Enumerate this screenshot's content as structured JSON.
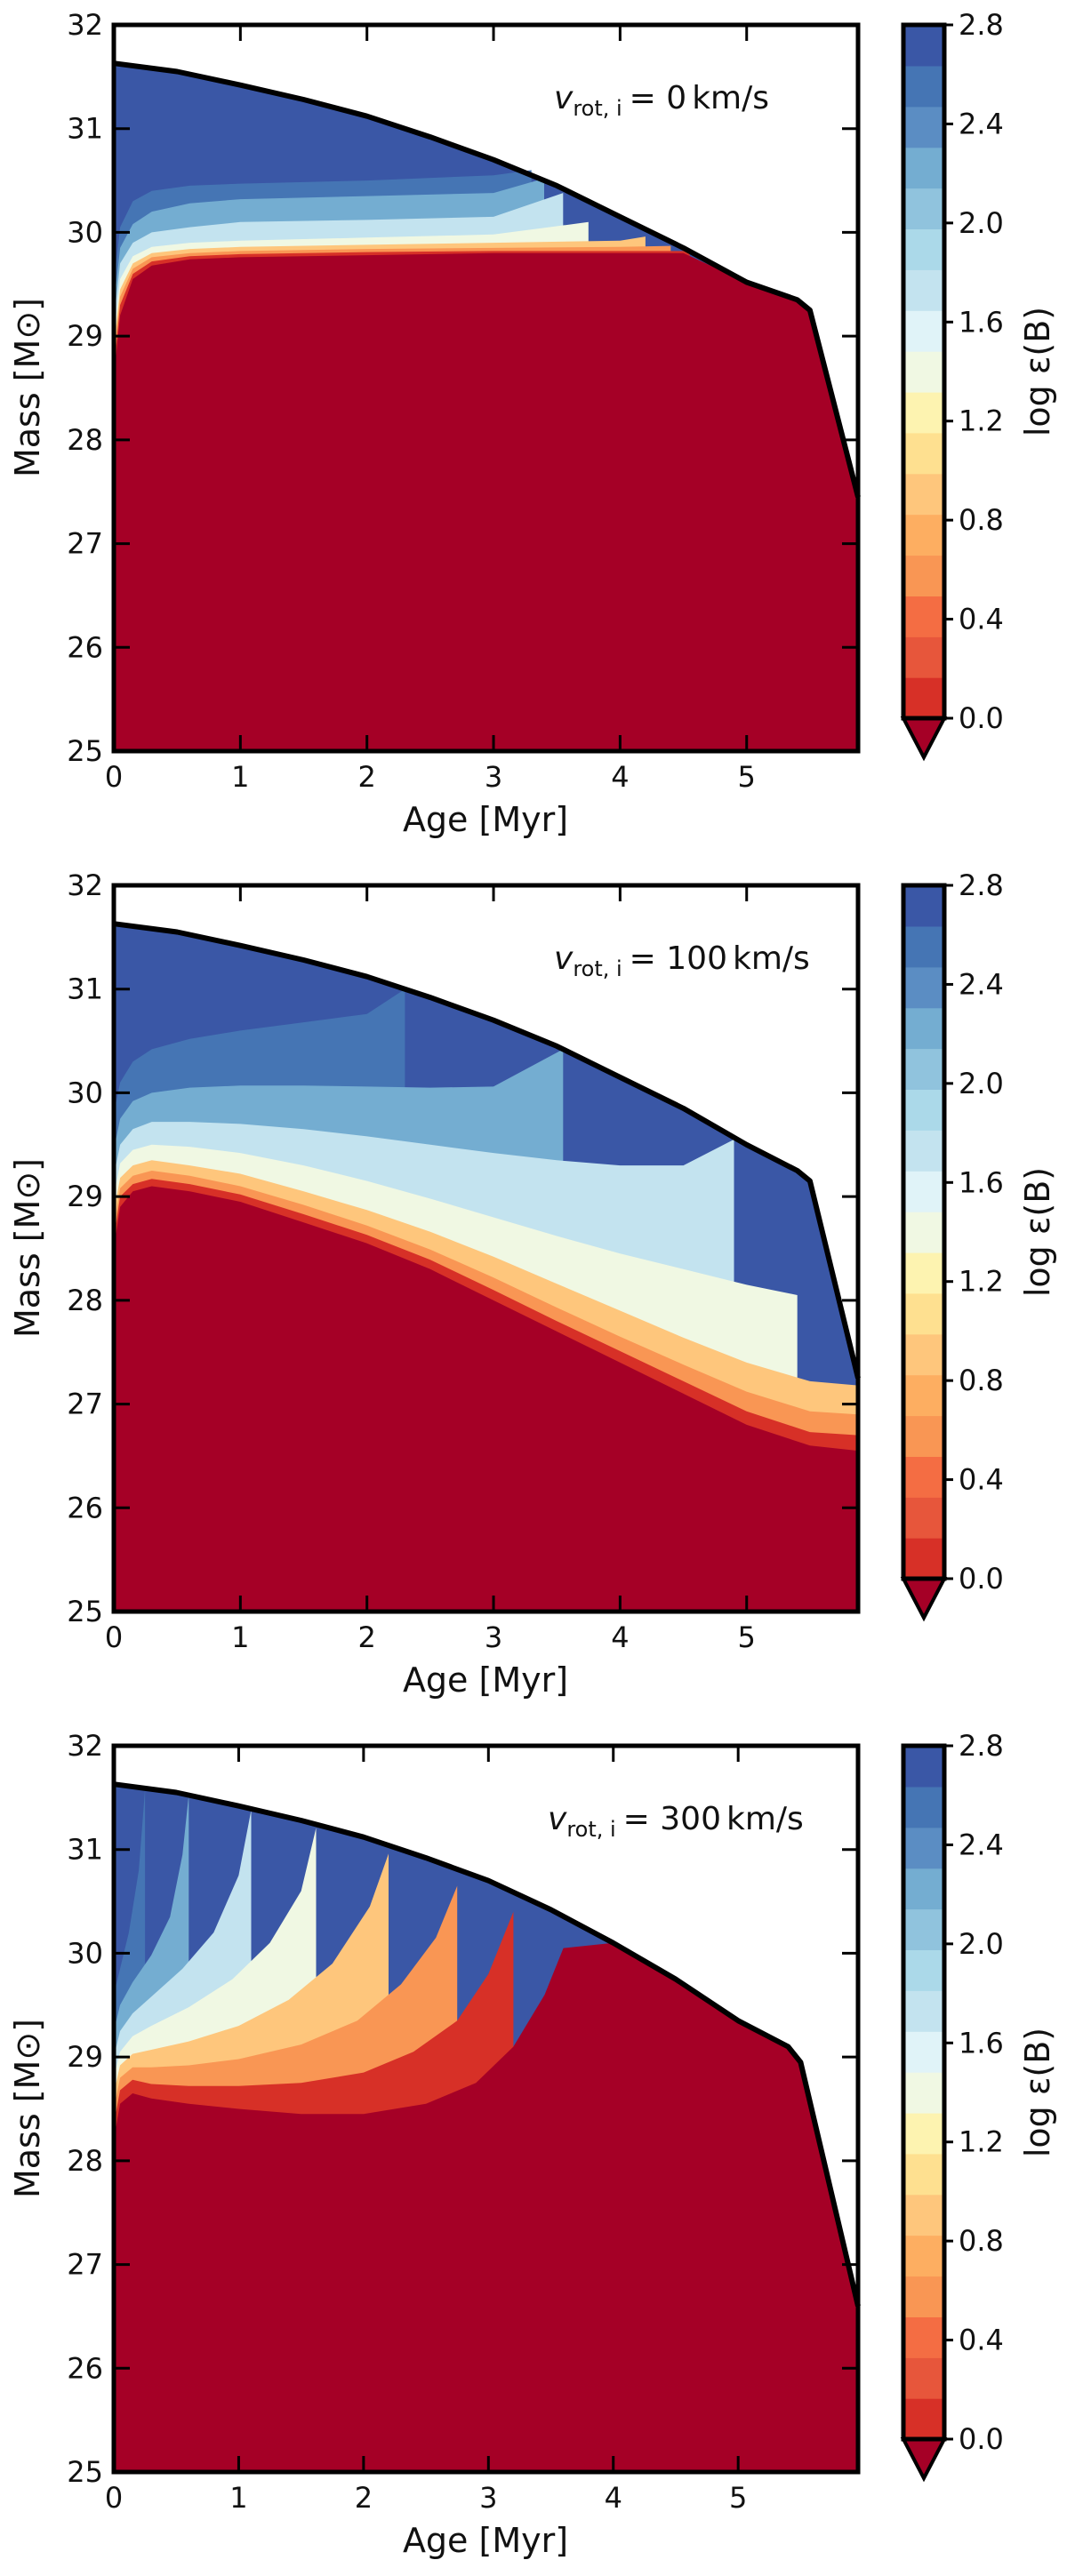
{
  "colors": {
    "levels": [
      "#a50026",
      "#d73027",
      "#e7563b",
      "#f46d43",
      "#f99654",
      "#fdae61",
      "#fec67c",
      "#fee090",
      "#fdf3b0",
      "#f0f8e3",
      "#e0f3f8",
      "#c3e3ef",
      "#abd9e9",
      "#90c3dd",
      "#74add1",
      "#5b8dc3",
      "#4575b4",
      "#3a57a6"
    ],
    "boundary": "#000000",
    "background": "#ffffff"
  },
  "chart_data": [
    {
      "type": "contourf",
      "annotation": "v_rot,i = 0 km/s",
      "annotation_parts": {
        "symbol": "v",
        "subscript": "rot, i",
        "equals": "= ",
        "value": "0",
        "unit": "km/s"
      },
      "xlabel": "Age [Myr]",
      "ylabel": "Mass [M⊙]",
      "xlim": [
        0,
        5.88
      ],
      "ylim": [
        25,
        32
      ],
      "xticks": [
        "0",
        "1",
        "2",
        "3",
        "4",
        "5"
      ],
      "yticks": [
        "25",
        "26",
        "27",
        "28",
        "29",
        "30",
        "31",
        "32"
      ],
      "colorbar": {
        "label": "log ε(B)",
        "min": 0.0,
        "max": 2.8,
        "ticks": [
          "0.0",
          "0.4",
          "0.8",
          "1.2",
          "1.6",
          "2.0",
          "2.4",
          "2.8"
        ],
        "extend": "min"
      },
      "boundary": {
        "age": [
          0,
          0.5,
          1,
          1.5,
          2,
          2.5,
          3,
          3.5,
          4,
          4.5,
          5,
          5.4,
          5.5,
          5.88
        ],
        "mass": [
          31.63,
          31.55,
          31.42,
          31.28,
          31.12,
          30.92,
          30.7,
          30.45,
          30.15,
          29.85,
          29.52,
          29.35,
          29.25,
          27.45
        ]
      },
      "core_top": {
        "age": [
          0,
          0.05,
          0.15,
          0.3,
          0.6,
          1,
          2,
          3,
          4,
          4.5
        ],
        "mass": [
          28.6,
          29.2,
          29.55,
          29.68,
          29.74,
          29.76,
          29.78,
          29.8,
          29.8,
          29.8
        ]
      },
      "transition_base_age": 4.55,
      "contours": [
        {
          "level": 0.4,
          "age": [
            0,
            0.05,
            0.15,
            0.3,
            0.6,
            1,
            2,
            3,
            4,
            4.55
          ],
          "mass": [
            28.7,
            29.3,
            29.6,
            29.72,
            29.77,
            29.79,
            29.81,
            29.82,
            29.82,
            29.82
          ]
        },
        {
          "level": 0.8,
          "age": [
            0,
            0.05,
            0.15,
            0.3,
            0.6,
            1,
            2,
            3,
            4,
            4.4
          ],
          "mass": [
            28.8,
            29.38,
            29.65,
            29.76,
            29.8,
            29.82,
            29.84,
            29.85,
            29.86,
            29.87
          ]
        },
        {
          "level": 1.2,
          "age": [
            0,
            0.05,
            0.15,
            0.3,
            0.6,
            1,
            2,
            3,
            4,
            4.2
          ],
          "mass": [
            28.9,
            29.45,
            29.7,
            29.8,
            29.84,
            29.86,
            29.88,
            29.9,
            29.92,
            29.96
          ]
        },
        {
          "level": 1.6,
          "age": [
            0,
            0.05,
            0.15,
            0.3,
            0.6,
            1,
            2,
            3,
            3.75
          ],
          "mass": [
            29.0,
            29.55,
            29.77,
            29.86,
            29.9,
            29.92,
            29.95,
            29.98,
            30.1
          ]
        },
        {
          "level": 2.0,
          "age": [
            0,
            0.05,
            0.15,
            0.3,
            0.6,
            1,
            2,
            3,
            3.55
          ],
          "mass": [
            29.15,
            29.7,
            29.9,
            30.0,
            30.05,
            30.1,
            30.12,
            30.15,
            30.38
          ]
        },
        {
          "level": 2.4,
          "age": [
            0,
            0.05,
            0.15,
            0.3,
            0.6,
            1,
            2,
            3,
            3.4
          ],
          "mass": [
            29.3,
            29.85,
            30.08,
            30.2,
            30.28,
            30.32,
            30.35,
            30.38,
            30.52
          ]
        },
        {
          "level": 2.8,
          "age": [
            0,
            0.05,
            0.15,
            0.3,
            0.6,
            1,
            2,
            3,
            3.3
          ],
          "mass": [
            29.5,
            30.05,
            30.3,
            30.4,
            30.45,
            30.47,
            30.5,
            30.55,
            30.6
          ]
        }
      ]
    },
    {
      "type": "contourf",
      "annotation": "v_rot,i = 100 km/s",
      "annotation_parts": {
        "symbol": "v",
        "subscript": "rot, i",
        "equals": "= ",
        "value": "100",
        "unit": "km/s"
      },
      "xlabel": "Age [Myr]",
      "ylabel": "Mass [M⊙]",
      "xlim": [
        0,
        5.88
      ],
      "ylim": [
        25,
        32
      ],
      "xticks": [
        "0",
        "1",
        "2",
        "3",
        "4",
        "5"
      ],
      "yticks": [
        "25",
        "26",
        "27",
        "28",
        "29",
        "30",
        "31",
        "32"
      ],
      "colorbar": {
        "label": "log ε(B)",
        "min": 0.0,
        "max": 2.8,
        "ticks": [
          "0.0",
          "0.4",
          "0.8",
          "1.2",
          "1.6",
          "2.0",
          "2.4",
          "2.8"
        ],
        "extend": "min"
      },
      "boundary": {
        "age": [
          0,
          0.5,
          1,
          1.5,
          2,
          2.5,
          3,
          3.5,
          4,
          4.5,
          5,
          5.4,
          5.5,
          5.88
        ],
        "mass": [
          31.63,
          31.55,
          31.42,
          31.28,
          31.12,
          30.92,
          30.7,
          30.45,
          30.15,
          29.85,
          29.5,
          29.25,
          29.15,
          27.25
        ]
      },
      "core_top": {
        "age": [
          0,
          0.05,
          0.15,
          0.3,
          0.6,
          1,
          1.5,
          2,
          2.5,
          3,
          3.5,
          4,
          4.5,
          5,
          5.5,
          5.88
        ],
        "mass": [
          28.5,
          28.9,
          29.05,
          29.1,
          29.05,
          28.95,
          28.75,
          28.55,
          28.3,
          28.0,
          27.7,
          27.4,
          27.1,
          26.8,
          26.6,
          26.55
        ]
      },
      "contours": [
        {
          "level": 0.4,
          "age": [
            0,
            0.05,
            0.15,
            0.3,
            0.6,
            1,
            1.5,
            2,
            2.5,
            3,
            3.5,
            4,
            4.5,
            5,
            5.5,
            5.88
          ],
          "mass": [
            28.6,
            29.0,
            29.12,
            29.17,
            29.12,
            29.02,
            28.83,
            28.63,
            28.39,
            28.1,
            27.8,
            27.51,
            27.22,
            26.93,
            26.73,
            26.7
          ]
        },
        {
          "level": 0.8,
          "age": [
            0,
            0.05,
            0.15,
            0.3,
            0.6,
            1,
            1.5,
            2,
            2.5,
            3,
            3.5,
            4,
            4.5,
            5,
            5.5,
            5.88
          ],
          "mass": [
            28.7,
            29.08,
            29.2,
            29.25,
            29.2,
            29.1,
            28.92,
            28.72,
            28.49,
            28.22,
            27.93,
            27.65,
            27.38,
            27.12,
            26.93,
            26.9
          ]
        },
        {
          "level": 1.2,
          "age": [
            0,
            0.05,
            0.15,
            0.3,
            0.6,
            1,
            1.5,
            2,
            2.5,
            3,
            3.5,
            4,
            4.5,
            5,
            5.5,
            5.88
          ],
          "mass": [
            28.85,
            29.18,
            29.3,
            29.35,
            29.3,
            29.22,
            29.05,
            28.87,
            28.66,
            28.42,
            28.16,
            27.9,
            27.64,
            27.4,
            27.22,
            27.18
          ]
        },
        {
          "level": 1.6,
          "age": [
            0,
            0.05,
            0.15,
            0.3,
            0.6,
            1,
            1.5,
            2,
            2.5,
            3,
            3.5,
            4,
            4.5,
            5,
            5.4
          ],
          "mass": [
            29.0,
            29.32,
            29.45,
            29.5,
            29.48,
            29.42,
            29.3,
            29.15,
            28.98,
            28.8,
            28.62,
            28.45,
            28.3,
            28.15,
            28.05
          ]
        },
        {
          "level": 2.0,
          "age": [
            0,
            0.05,
            0.15,
            0.3,
            0.6,
            1,
            1.5,
            2,
            2.5,
            3,
            3.5,
            4,
            4.5,
            4.9
          ],
          "mass": [
            29.2,
            29.5,
            29.65,
            29.72,
            29.72,
            29.7,
            29.65,
            29.58,
            29.5,
            29.42,
            29.35,
            29.3,
            29.3,
            29.55
          ]
        },
        {
          "level": 2.4,
          "age": [
            0,
            0.05,
            0.15,
            0.3,
            0.6,
            1,
            1.5,
            2,
            2.5,
            3,
            3.55
          ],
          "mass": [
            29.45,
            29.75,
            29.92,
            30.0,
            30.05,
            30.07,
            30.07,
            30.06,
            30.05,
            30.06,
            30.42
          ]
        },
        {
          "level": 2.8,
          "age": [
            0,
            0.05,
            0.15,
            0.3,
            0.6,
            1,
            1.5,
            2,
            2.3
          ],
          "mass": [
            29.8,
            30.1,
            30.3,
            30.42,
            30.52,
            30.6,
            30.68,
            30.76,
            31.0
          ]
        }
      ]
    },
    {
      "type": "contourf",
      "annotation": "v_rot,i = 300 km/s",
      "annotation_parts": {
        "symbol": "v",
        "subscript": "rot, i",
        "equals": "= ",
        "value": "300",
        "unit": "km/s"
      },
      "xlabel": "Age [Myr]",
      "ylabel": "Mass [M⊙]",
      "xlim": [
        0,
        5.96
      ],
      "ylim": [
        25,
        32
      ],
      "xticks": [
        "0",
        "1",
        "2",
        "3",
        "4",
        "5"
      ],
      "yticks": [
        "25",
        "26",
        "27",
        "28",
        "29",
        "30",
        "31",
        "32"
      ],
      "colorbar": {
        "label": "log ε(B)",
        "min": 0.0,
        "max": 2.8,
        "ticks": [
          "0.0",
          "0.4",
          "0.8",
          "1.2",
          "1.6",
          "2.0",
          "2.4",
          "2.8"
        ],
        "extend": "min"
      },
      "boundary": {
        "age": [
          0,
          0.5,
          1,
          1.5,
          2,
          2.5,
          3,
          3.5,
          4,
          4.5,
          5,
          5.4,
          5.5,
          5.96
        ],
        "mass": [
          31.63,
          31.55,
          31.42,
          31.28,
          31.12,
          30.92,
          30.7,
          30.42,
          30.1,
          29.75,
          29.35,
          29.1,
          28.95,
          26.6
        ]
      },
      "core_top": {
        "age": [
          0,
          0.05,
          0.15,
          0.3,
          0.6,
          1,
          1.5,
          2,
          2.5,
          2.9,
          3.2,
          3.45,
          3.6
        ],
        "mass": [
          28.2,
          28.55,
          28.65,
          28.6,
          28.55,
          28.5,
          28.45,
          28.45,
          28.55,
          28.75,
          29.1,
          29.6,
          30.05
        ]
      },
      "contours": [
        {
          "level": 0.4,
          "age": [
            0,
            0.05,
            0.15,
            0.3,
            0.6,
            1,
            1.5,
            2,
            2.4,
            2.75,
            3.0,
            3.2
          ],
          "mass": [
            28.35,
            28.68,
            28.78,
            28.74,
            28.72,
            28.72,
            28.75,
            28.85,
            29.05,
            29.35,
            29.8,
            30.4
          ]
        },
        {
          "level": 0.8,
          "age": [
            0,
            0.05,
            0.15,
            0.3,
            0.6,
            1,
            1.5,
            1.95,
            2.3,
            2.58,
            2.75
          ],
          "mass": [
            28.5,
            28.8,
            28.9,
            28.9,
            28.92,
            28.98,
            29.12,
            29.35,
            29.7,
            30.15,
            30.65
          ]
        },
        {
          "level": 1.2,
          "age": [
            0,
            0.05,
            0.15,
            0.3,
            0.6,
            1,
            1.4,
            1.75,
            2.05,
            2.2
          ],
          "mass": [
            28.65,
            28.92,
            29.03,
            29.07,
            29.15,
            29.3,
            29.55,
            29.9,
            30.45,
            30.96
          ]
        },
        {
          "level": 1.6,
          "age": [
            0,
            0.05,
            0.15,
            0.3,
            0.6,
            0.95,
            1.25,
            1.5,
            1.62
          ],
          "mass": [
            28.8,
            29.05,
            29.2,
            29.3,
            29.48,
            29.75,
            30.1,
            30.6,
            31.21
          ]
        },
        {
          "level": 2.0,
          "age": [
            0,
            0.05,
            0.15,
            0.3,
            0.55,
            0.8,
            1.0,
            1.1
          ],
          "mass": [
            29.0,
            29.25,
            29.42,
            29.58,
            29.85,
            30.2,
            30.75,
            31.38
          ]
        },
        {
          "level": 2.4,
          "age": [
            0,
            0.05,
            0.15,
            0.3,
            0.45,
            0.55,
            0.6
          ],
          "mass": [
            29.25,
            29.5,
            29.72,
            29.98,
            30.35,
            30.95,
            31.53
          ]
        },
        {
          "level": 2.8,
          "age": [
            0,
            0.05,
            0.12,
            0.2,
            0.25
          ],
          "mass": [
            29.6,
            29.85,
            30.2,
            30.8,
            31.58
          ]
        }
      ]
    }
  ]
}
